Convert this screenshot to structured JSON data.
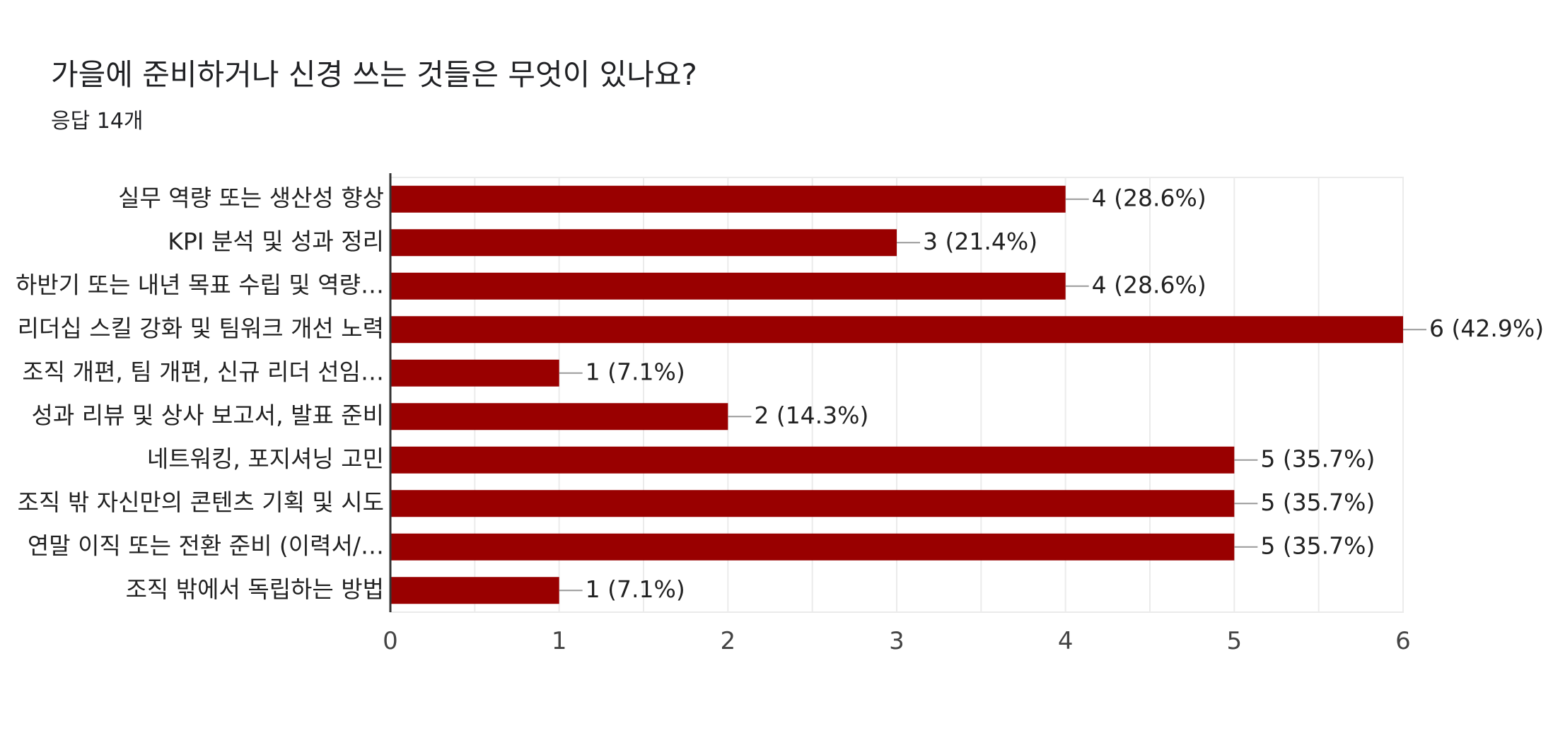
{
  "header": {
    "title": "가을에 준비하거나 신경 쓰는 것들은 무엇이 있나요?",
    "subtitle": "응답 14개"
  },
  "colors": {
    "bar": "#990000",
    "grid": "#ebebeb",
    "axis": "#333333",
    "leader": "#999999"
  },
  "chart_data": {
    "type": "bar",
    "orientation": "horizontal",
    "title": "가을에 준비하거나 신경 쓰는 것들은 무엇이 있나요?",
    "subtitle": "응답 14개",
    "categories": [
      "실무 역량 또는 생산성 향상",
      "KPI 분석 및 성과 정리",
      "하반기 또는 내년 목표 수립 및 역량…",
      "리더십 스킬 강화 및 팀워크 개선 노력",
      "조직 개편, 팀 개편, 신규 리더 선임…",
      "성과 리뷰 및 상사 보고서, 발표 준비",
      "네트워킹, 포지셔닝 고민",
      "조직 밖 자신만의 콘텐츠 기획 및 시도",
      "연말 이직 또는 전환 준비 (이력서/…",
      "조직 밖에서 독립하는 방법"
    ],
    "values": [
      4,
      3,
      4,
      6,
      1,
      2,
      5,
      5,
      5,
      1
    ],
    "data_labels": [
      "4 (28.6%)",
      "3 (21.4%)",
      "4 (28.6%)",
      "6 (42.9%)",
      "1 (7.1%)",
      "2 (14.3%)",
      "5 (35.7%)",
      "5 (35.7%)",
      "5 (35.7%)",
      "1 (7.1%)"
    ],
    "xlim": [
      0,
      6
    ],
    "xticks": [
      "0",
      "1",
      "2",
      "3",
      "4",
      "5",
      "6"
    ],
    "grid": true,
    "legend": "none",
    "xlabel": "",
    "ylabel": ""
  }
}
